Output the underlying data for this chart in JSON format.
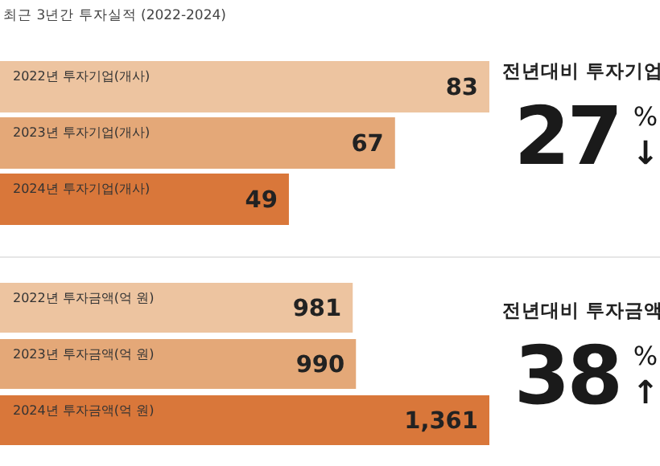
{
  "chart_data": [
    {
      "type": "bar",
      "orientation": "horizontal",
      "title": "최근 3년간 투자실적 (2022-2024)",
      "categories": [
        "2022년 투자기업(개사)",
        "2023년 투자기업(개사)",
        "2024년 투자기업(개사)"
      ],
      "values": [
        83,
        67,
        49
      ],
      "value_labels": [
        "83",
        "67",
        "49"
      ],
      "colors": [
        "#edc4a0",
        "#e4a878",
        "#d9773a"
      ]
    },
    {
      "type": "other",
      "title": "전년대비 투자기업",
      "annotations": [
        "27",
        "%",
        "↓"
      ]
    },
    {
      "type": "bar",
      "orientation": "horizontal",
      "categories": [
        "2022년 투자금액(억 원)",
        "2023년 투자금액(억 원)",
        "2024년 투자금액(억 원)"
      ],
      "values": [
        981,
        990,
        1361
      ],
      "value_labels": [
        "981",
        "990",
        "1,361"
      ],
      "colors": [
        "#edc4a0",
        "#e4a878",
        "#d9773a"
      ]
    },
    {
      "type": "other",
      "title": "전년대비 투자금액",
      "annotations": [
        "38",
        "%",
        "↑"
      ]
    }
  ]
}
